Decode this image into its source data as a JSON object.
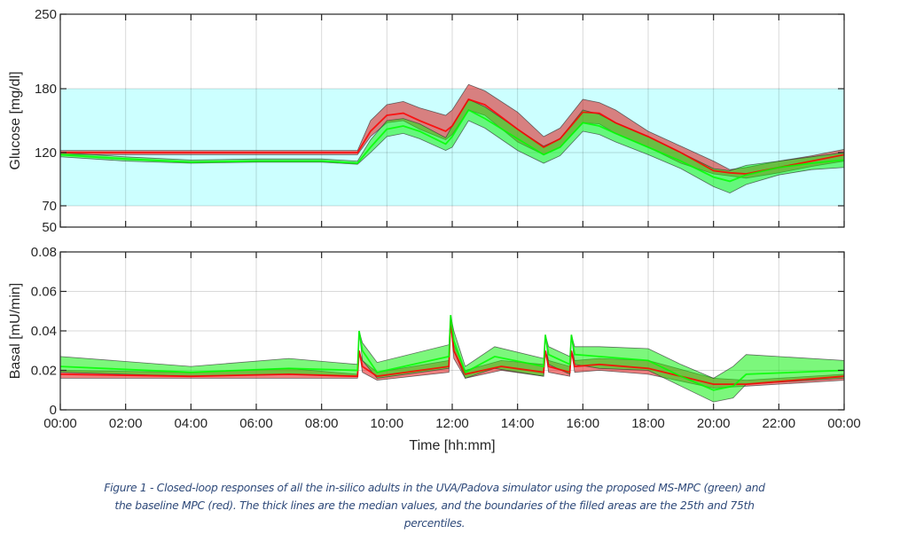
{
  "chart_data": [
    {
      "type": "area",
      "ylabel": "Glucose [mg/dl]",
      "ylim": [
        50,
        250
      ],
      "yticks": [
        50,
        70,
        120,
        180,
        250
      ],
      "xlim": [
        0,
        24
      ],
      "target_range": [
        70,
        180
      ],
      "target_color": "#ccffff",
      "grid": true,
      "series": [
        {
          "color": "#ff0000",
          "x": [
            0,
            9.1,
            9.5,
            10,
            10.5,
            11,
            11.8,
            12,
            12.5,
            13,
            14,
            14.8,
            15.3,
            16,
            16.5,
            17,
            18,
            19,
            20,
            20.5,
            21,
            22,
            23,
            24
          ],
          "median": [
            120,
            120,
            140,
            155,
            157,
            150,
            140,
            145,
            170,
            165,
            142,
            125,
            133,
            158,
            157,
            148,
            135,
            120,
            103,
            101,
            100,
            106,
            112,
            118
          ],
          "p25": [
            118,
            118,
            135,
            148,
            150,
            142,
            132,
            137,
            160,
            155,
            130,
            118,
            125,
            148,
            147,
            138,
            125,
            110,
            100,
            98,
            96,
            101,
            107,
            112
          ],
          "p75": [
            122,
            122,
            150,
            165,
            168,
            162,
            155,
            160,
            184,
            178,
            158,
            135,
            143,
            170,
            167,
            160,
            140,
            126,
            112,
            104,
            106,
            112,
            117,
            123
          ]
        },
        {
          "color": "#00ff00",
          "x": [
            0,
            2,
            4,
            6,
            8,
            9.1,
            9.5,
            10,
            10.5,
            11,
            11.8,
            12,
            12.5,
            13,
            14,
            14.8,
            15.3,
            16,
            16.5,
            17,
            18,
            19,
            20,
            20.5,
            21,
            22,
            23,
            24
          ],
          "median": [
            118,
            114,
            111,
            112,
            112,
            110,
            125,
            142,
            145,
            140,
            128,
            135,
            160,
            152,
            133,
            118,
            125,
            148,
            145,
            138,
            125,
            112,
            97,
            93,
            99,
            106,
            110,
            113
          ],
          "p25": [
            116,
            112,
            110,
            111,
            111,
            109,
            120,
            135,
            138,
            133,
            122,
            125,
            150,
            143,
            122,
            110,
            117,
            140,
            137,
            130,
            118,
            105,
            88,
            82,
            90,
            99,
            104,
            106
          ],
          "p75": [
            120,
            116,
            113,
            114,
            114,
            112,
            132,
            150,
            152,
            147,
            134,
            145,
            170,
            163,
            142,
            126,
            133,
            160,
            156,
            148,
            135,
            120,
            105,
            103,
            108,
            112,
            116,
            120
          ]
        }
      ]
    },
    {
      "type": "area",
      "ylabel": "Basal [mU/min]",
      "xlabel": "Time [hh:mm]",
      "ylim": [
        0,
        0.08
      ],
      "yticks": [
        0,
        0.02,
        0.04,
        0.06,
        0.08
      ],
      "xlim": [
        0,
        24
      ],
      "xticks": [
        "00:00",
        "02:00",
        "04:00",
        "06:00",
        "08:00",
        "10:00",
        "12:00",
        "14:00",
        "16:00",
        "18:00",
        "20:00",
        "22:00",
        "00:00"
      ],
      "grid": true,
      "series": [
        {
          "color": "#ff0000",
          "x": [
            0,
            4,
            7,
            9.1,
            9.15,
            9.25,
            9.7,
            11.9,
            11.95,
            12.05,
            12.4,
            13.5,
            14.8,
            14.85,
            14.95,
            15.6,
            15.65,
            15.75,
            16.5,
            18,
            20,
            21,
            24
          ],
          "median": [
            0.018,
            0.017,
            0.018,
            0.017,
            0.03,
            0.022,
            0.017,
            0.022,
            0.045,
            0.03,
            0.018,
            0.022,
            0.019,
            0.03,
            0.022,
            0.019,
            0.03,
            0.022,
            0.023,
            0.021,
            0.013,
            0.013,
            0.017
          ],
          "p25": [
            0.016,
            0.016,
            0.016,
            0.016,
            0.03,
            0.019,
            0.015,
            0.019,
            0.045,
            0.026,
            0.016,
            0.02,
            0.017,
            0.03,
            0.019,
            0.017,
            0.03,
            0.019,
            0.02,
            0.018,
            0.011,
            0.012,
            0.015
          ],
          "p75": [
            0.02,
            0.019,
            0.021,
            0.018,
            0.03,
            0.025,
            0.019,
            0.025,
            0.045,
            0.033,
            0.02,
            0.025,
            0.023,
            0.03,
            0.025,
            0.022,
            0.03,
            0.025,
            0.026,
            0.025,
            0.016,
            0.015,
            0.018
          ]
        },
        {
          "color": "#00ff00",
          "x": [
            0,
            4,
            7,
            9.1,
            9.15,
            9.25,
            9.7,
            11.9,
            11.95,
            12.05,
            12.4,
            13.3,
            14.8,
            14.85,
            14.95,
            15.6,
            15.65,
            15.75,
            16.5,
            18,
            19,
            20,
            20.6,
            21,
            24
          ],
          "median": [
            0.022,
            0.019,
            0.021,
            0.02,
            0.04,
            0.03,
            0.019,
            0.027,
            0.048,
            0.035,
            0.019,
            0.027,
            0.022,
            0.038,
            0.028,
            0.023,
            0.038,
            0.028,
            0.027,
            0.025,
            0.017,
            0.01,
            0.012,
            0.018,
            0.02
          ],
          "p25": [
            0.019,
            0.017,
            0.018,
            0.017,
            0.04,
            0.025,
            0.016,
            0.021,
            0.048,
            0.03,
            0.016,
            0.021,
            0.017,
            0.038,
            0.023,
            0.018,
            0.038,
            0.023,
            0.021,
            0.02,
            0.012,
            0.004,
            0.006,
            0.013,
            0.016
          ],
          "p75": [
            0.027,
            0.022,
            0.026,
            0.023,
            0.04,
            0.034,
            0.024,
            0.033,
            0.048,
            0.04,
            0.022,
            0.032,
            0.026,
            0.038,
            0.032,
            0.027,
            0.038,
            0.032,
            0.032,
            0.031,
            0.023,
            0.016,
            0.022,
            0.028,
            0.025
          ]
        }
      ]
    }
  ],
  "caption": {
    "line1": "Figure 1 - Closed-loop responses of all the in-silico adults in the UVA/Padova simulator using the proposed MS-MPC (green) and",
    "line2": "the baseline MPC (red). The thick lines are the median values, and the boundaries of the filled areas are the 25th and 75th",
    "line3": "percentiles."
  }
}
